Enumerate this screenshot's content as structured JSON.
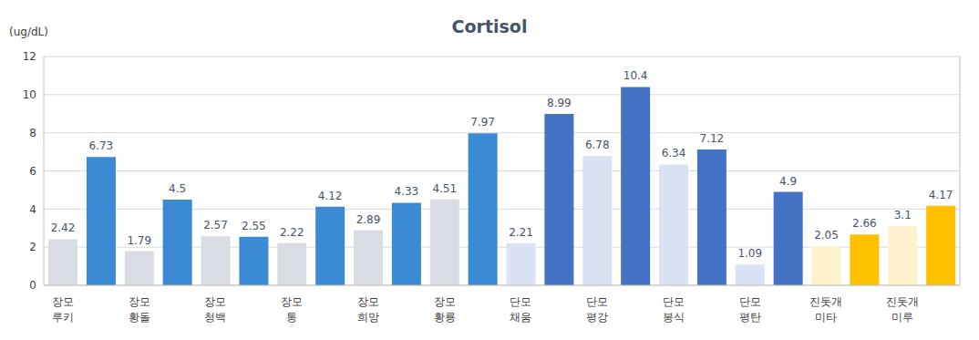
{
  "chart_data": {
    "type": "bar",
    "title": "Cortisol",
    "y_label": "(ug/dL)",
    "categories": [
      "장모\n루키",
      null,
      "장모\n황돌",
      null,
      "장모\n청백",
      null,
      "장모\n통",
      null,
      "장모\n희망",
      null,
      "장모\n황룡",
      null,
      "단모\n채움",
      null,
      "단모\n평강",
      null,
      "단모\n봉식",
      null,
      "단모\n평탄",
      null,
      "진돗개\n미타",
      null,
      "진돗개\n미루",
      null
    ],
    "values": [
      2.42,
      6.73,
      1.79,
      4.5,
      2.57,
      2.55,
      2.22,
      4.12,
      2.89,
      4.33,
      4.51,
      7.97,
      2.21,
      8.99,
      6.78,
      10.4,
      6.34,
      7.12,
      1.09,
      4.9,
      2.05,
      2.66,
      3.1,
      4.17
    ],
    "colors": [
      "#d9dce3",
      "#3a8ad4",
      "#d9dce3",
      "#3a8ad4",
      "#d9dce3",
      "#3a8ad4",
      "#d9dce3",
      "#3a8ad4",
      "#d9dce3",
      "#3a8ad4",
      "#d9dce3",
      "#3a8ad4",
      "#dae3f3",
      "#4472c4",
      "#dae3f3",
      "#4472c4",
      "#dae3f3",
      "#4472c4",
      "#dae3f3",
      "#4472c4",
      "#fff2cc",
      "#ffc000",
      "#fff2cc",
      "#ffc000"
    ],
    "ylim": [
      0,
      12
    ],
    "yticks": [
      0,
      2,
      4,
      6,
      8,
      10,
      12
    ],
    "grid": true,
    "data_labels": true
  }
}
